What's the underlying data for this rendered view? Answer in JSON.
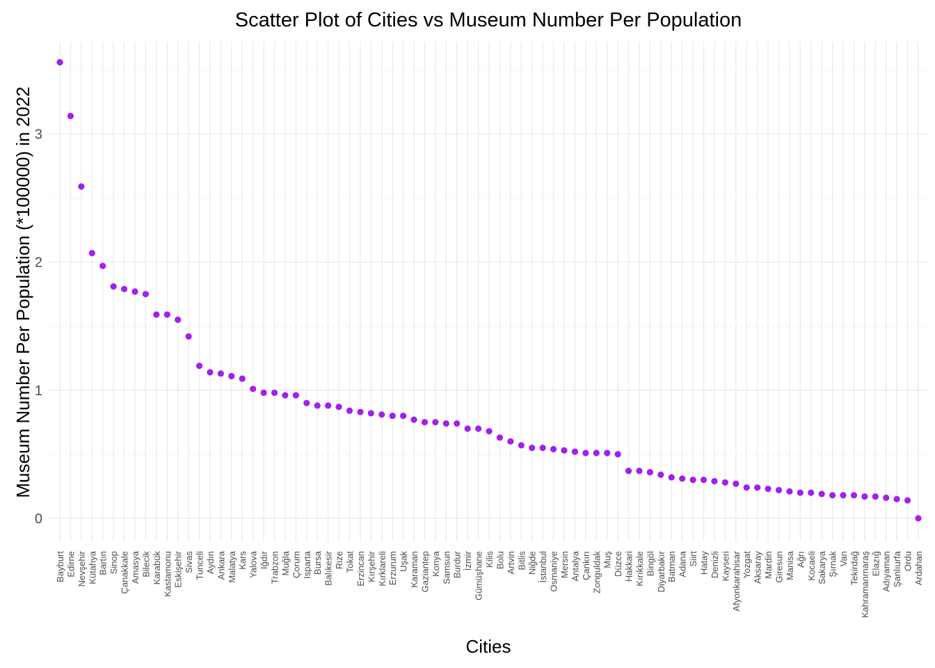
{
  "chart_data": {
    "type": "scatter",
    "title": "Scatter Plot of Cities vs Museum Number Per Population",
    "xlabel": "Cities",
    "ylabel": "Museum Number Per Population (*100000) in 2022",
    "ylim": [
      -0.18,
      3.72
    ],
    "yticks": [
      0,
      1,
      2,
      3
    ],
    "grid": true,
    "point_color": "#a020f0",
    "categories": [
      "Bayburt",
      "Edirne",
      "Nevşehir",
      "Kütahya",
      "Bartın",
      "Sinop",
      "Çanakkale",
      "Amasya",
      "Bilecik",
      "Karabük",
      "Kastamonu",
      "Eskişehir",
      "Sivas",
      "Tunceli",
      "Aydın",
      "Ankara",
      "Malatya",
      "Kars",
      "Yalova",
      "Iğdır",
      "Trabzon",
      "Muğla",
      "Çorum",
      "Isparta",
      "Bursa",
      "Balıkesir",
      "Rize",
      "Tokat",
      "Erzincan",
      "Kırşehir",
      "Kırklareli",
      "Erzurum",
      "Uşak",
      "Karaman",
      "Gaziantep",
      "Konya",
      "Samsun",
      "Burdur",
      "İzmir",
      "Gümüşhane",
      "Kilis",
      "Bolu",
      "Artvin",
      "Bitlis",
      "Niğde",
      "İstanbul",
      "Osmaniye",
      "Mersin",
      "Antalya",
      "Çankırı",
      "Zonguldak",
      "Muş",
      "Düzce",
      "Hakkari",
      "Kırıkkale",
      "Bingöl",
      "Diyarbakır",
      "Batman",
      "Adana",
      "Siirt",
      "Hatay",
      "Denizli",
      "Kayseri",
      "Afyonkarahisar",
      "Yozgat",
      "Aksaray",
      "Mardin",
      "Giresun",
      "Manisa",
      "Ağrı",
      "Kocaeli",
      "Sakarya",
      "Şırnak",
      "Van",
      "Tekirdağ",
      "Kahramanmaraş",
      "Elazığ",
      "Adıyaman",
      "Şanlıurfa",
      "Ordu",
      "Ardahan"
    ],
    "values": [
      3.56,
      3.14,
      2.59,
      2.07,
      1.97,
      1.81,
      1.79,
      1.77,
      1.75,
      1.59,
      1.59,
      1.55,
      1.42,
      1.19,
      1.14,
      1.13,
      1.11,
      1.09,
      1.01,
      0.98,
      0.98,
      0.96,
      0.96,
      0.9,
      0.88,
      0.88,
      0.87,
      0.84,
      0.83,
      0.82,
      0.81,
      0.8,
      0.8,
      0.77,
      0.75,
      0.75,
      0.74,
      0.74,
      0.7,
      0.7,
      0.68,
      0.63,
      0.6,
      0.57,
      0.55,
      0.55,
      0.54,
      0.53,
      0.52,
      0.51,
      0.51,
      0.51,
      0.5,
      0.37,
      0.37,
      0.36,
      0.34,
      0.32,
      0.31,
      0.3,
      0.3,
      0.29,
      0.28,
      0.27,
      0.24,
      0.24,
      0.23,
      0.22,
      0.21,
      0.2,
      0.2,
      0.19,
      0.18,
      0.18,
      0.18,
      0.17,
      0.17,
      0.16,
      0.15,
      0.14,
      0.0
    ]
  }
}
